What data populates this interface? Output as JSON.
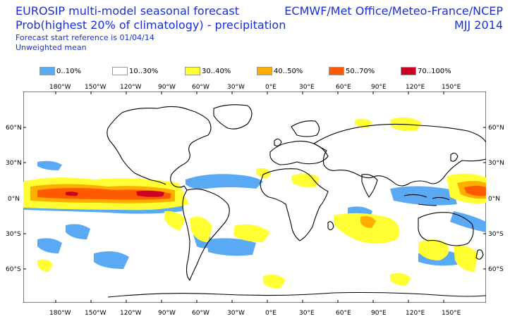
{
  "header": {
    "title_line1": "EUROSIP multi-model seasonal forecast",
    "title_line2": "Prob(highest 20% of climatology) - precipitation",
    "forecast_ref": "Forecast start reference is 01/04/14",
    "mean_type": "Unweighted mean",
    "centres": "ECMWF/Met Office/Meteo-France/NCEP",
    "season": "MJJ 2014"
  },
  "legend": [
    {
      "label": "0..10%",
      "color": "#5aa9f5"
    },
    {
      "label": "10..30%",
      "color": "#ffffff"
    },
    {
      "label": "30..40%",
      "color": "#ffff33"
    },
    {
      "label": "40..50%",
      "color": "#ffae00"
    },
    {
      "label": "50..70%",
      "color": "#ff5a00"
    },
    {
      "label": "70..100%",
      "color": "#cc0022"
    }
  ],
  "axes": {
    "lon_labels": [
      "180°W",
      "150°W",
      "120°W",
      "90°W",
      "60°W",
      "30°W",
      "0°E",
      "30°E",
      "60°E",
      "90°E",
      "120°E",
      "150°E"
    ],
    "lat_labels": [
      "60°N",
      "30°N",
      "0°N",
      "30°S",
      "60°S"
    ]
  },
  "colors": {
    "text": "#1a2fd6",
    "coast": "#000000"
  }
}
